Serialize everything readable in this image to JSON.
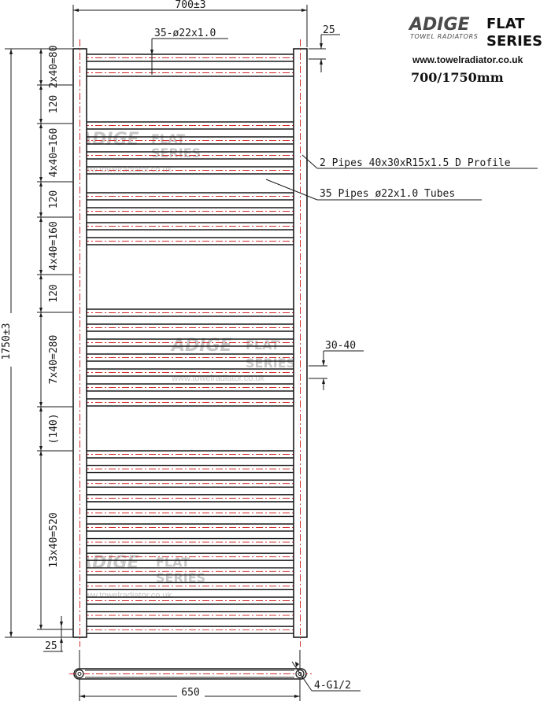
{
  "brand": {
    "logo_word": "ADIGE",
    "logo_sub": "TOWEL RADIATORS",
    "flat": "FLAT",
    "series": "SERIES",
    "website": "www.towelradiator.co.uk",
    "model_size": "700/1750mm"
  },
  "dimensions": {
    "overall_width": "700±3",
    "overall_height": "1750±3",
    "top_offset": "25",
    "bottom_offset": "25",
    "bottom_width": "650",
    "rail_spec": "35-ø22x1.0",
    "gap_spec": "30-40"
  },
  "sections": [
    "2x40=80",
    "120",
    "4x40=160",
    "120",
    "4x40=160",
    "120",
    "7x40=280",
    "(140)",
    "13x40=520"
  ],
  "callouts": {
    "profile": "2 Pipes 40x30xR15x1.5 D Profile",
    "tubes": "35 Pipes ø22x1.0 Tubes",
    "connection": "4-G1/2"
  },
  "watermark": {
    "logo_word": "ADIGE",
    "flat": "FLAT",
    "series": "SERIES",
    "url": "www.towelradiator.co.uk"
  },
  "colors": {
    "line": "#1a1a1a",
    "centerline": "#d42a2a",
    "watermark": "#c8c8c8"
  }
}
